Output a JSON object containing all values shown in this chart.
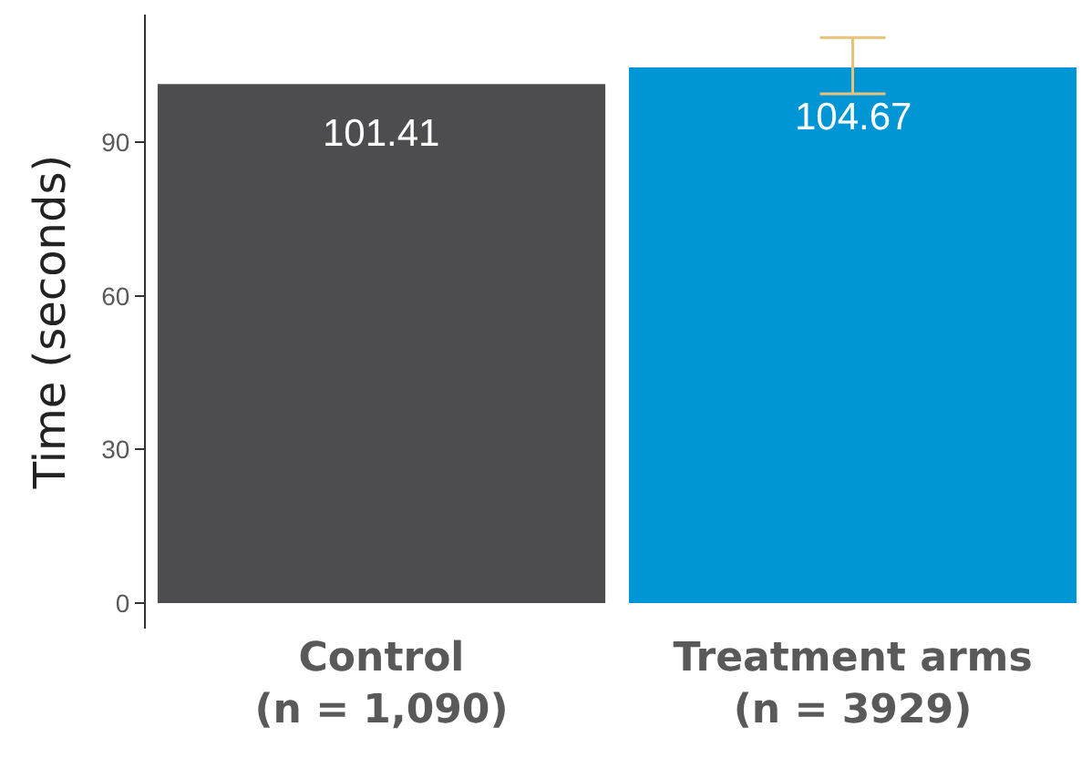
{
  "chart_data": {
    "type": "bar",
    "ylabel": "Time (seconds)",
    "categories": [
      "Control\n(n = 1,090)",
      "Treatment arms\n(n = 3929)"
    ],
    "values": [
      101.41,
      104.67
    ],
    "colors": [
      "#4d4d4f",
      "#0096d6"
    ],
    "errors": [
      null,
      [
        99.5,
        110.5
      ]
    ],
    "data_labels": true,
    "ylim": [
      -5,
      115
    ],
    "yticks": [
      0,
      30,
      60,
      90
    ],
    "grid": false
  }
}
